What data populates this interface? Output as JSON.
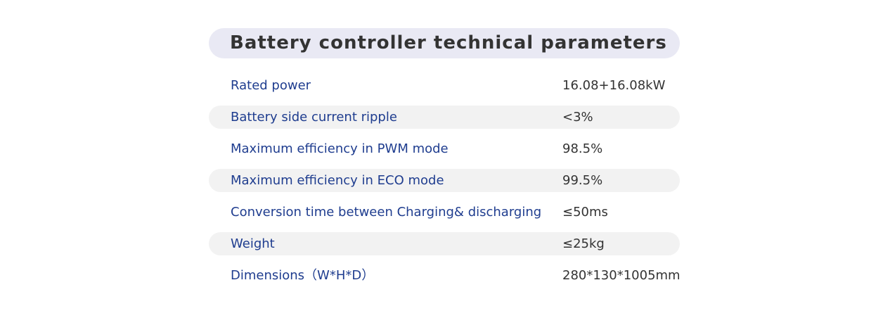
{
  "header": {
    "title": "Battery controller technical parameters"
  },
  "table": {
    "rows": [
      [
        "Rated power",
        "16.08+16.08kW"
      ],
      [
        "Battery side current ripple",
        "<3%"
      ],
      [
        "Maximum efficiency in PWM mode",
        "98.5%"
      ],
      [
        "Maximum efficiency in ECO mode",
        "99.5%"
      ],
      [
        "Conversion time between Charging& discharging",
        "≤50ms"
      ],
      [
        "Weight",
        "≤25kg"
      ],
      [
        "Dimensions（W*H*D）",
        "280*130*1005mm"
      ]
    ]
  }
}
